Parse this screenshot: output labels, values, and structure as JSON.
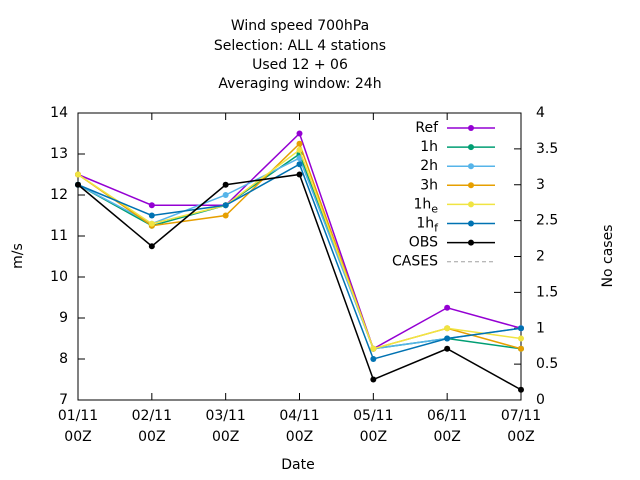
{
  "chart_data": {
    "type": "line",
    "title": [
      "Wind speed 700hPa",
      "Selection: ALL      4 stations",
      "Used  12 + 06",
      "Averaging window: 24h"
    ],
    "xlabel": "Date",
    "ylabel": "m/s",
    "y2label": "No cases",
    "categories": [
      [
        "01/11",
        "00Z"
      ],
      [
        "02/11",
        "00Z"
      ],
      [
        "03/11",
        "00Z"
      ],
      [
        "04/11",
        "00Z"
      ],
      [
        "05/11",
        "00Z"
      ],
      [
        "06/11",
        "00Z"
      ],
      [
        "07/11",
        "00Z"
      ]
    ],
    "ylim": [
      7,
      14
    ],
    "yticks": [
      7,
      8,
      9,
      10,
      11,
      12,
      13,
      14
    ],
    "y2lim": [
      0,
      4
    ],
    "y2ticks": [
      0,
      0.5,
      1,
      1.5,
      2,
      2.5,
      3,
      3.5,
      4
    ],
    "grid": false,
    "legend": "top-right",
    "series": [
      {
        "name": "Ref",
        "color": "#9400d3",
        "values": [
          12.5,
          11.75,
          11.75,
          13.5,
          8.25,
          9.25,
          8.75
        ]
      },
      {
        "name": "1h",
        "color": "#009e73",
        "values": [
          12.25,
          11.25,
          11.75,
          13.0,
          8.25,
          8.5,
          8.25
        ]
      },
      {
        "name": "2h",
        "color": "#56b4e9",
        "values": [
          12.25,
          11.3,
          12.0,
          12.9,
          8.25,
          8.5,
          8.75
        ]
      },
      {
        "name": "3h",
        "color": "#e69f00",
        "values": [
          12.5,
          11.25,
          11.5,
          13.25,
          8.25,
          8.75,
          8.25
        ]
      },
      {
        "name": "1h",
        "name_sub": "e",
        "color": "#f0e442",
        "values": [
          12.5,
          11.3,
          11.75,
          13.1,
          8.25,
          8.75,
          8.5
        ]
      },
      {
        "name": "1h",
        "name_sub": "f",
        "color": "#0072b2",
        "values": [
          12.25,
          11.5,
          11.75,
          12.75,
          8.0,
          8.5,
          8.75
        ]
      },
      {
        "name": "OBS",
        "color": "#000000",
        "values": [
          12.25,
          10.75,
          12.25,
          12.5,
          7.5,
          8.25,
          7.25
        ]
      },
      {
        "name": "CASES",
        "color": "#a0a0a0",
        "dashed": true,
        "axis": "y2",
        "values": [
          null,
          null,
          null,
          null,
          null,
          null,
          null
        ]
      }
    ]
  }
}
